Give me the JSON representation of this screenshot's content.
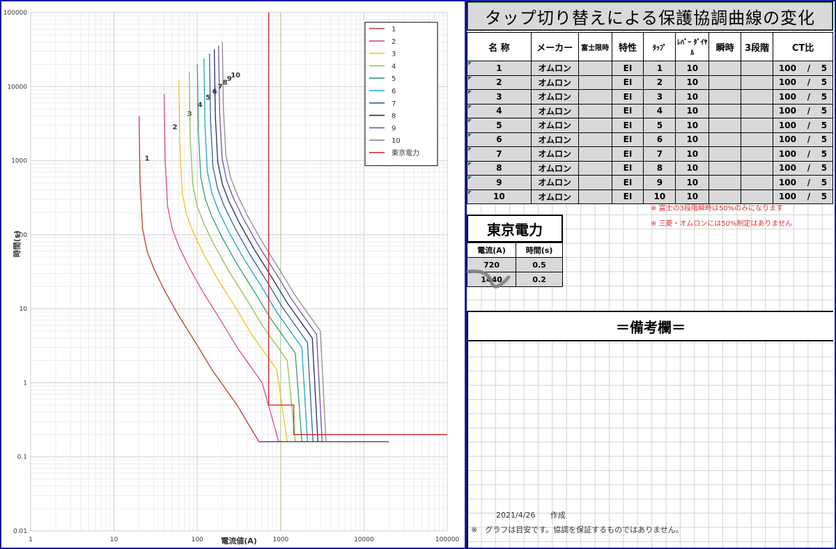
{
  "chart_data": {
    "type": "line",
    "title": "",
    "xlabel": "電流値(A)",
    "ylabel": "時間(s)",
    "xscale": "log",
    "yscale": "log",
    "xlim": [
      1,
      100000
    ],
    "ylim": [
      0.01,
      100000
    ],
    "xticks": [
      "1",
      "10",
      "100",
      "1000",
      "10000",
      "100000"
    ],
    "yticks": [
      "0.01",
      "0.1",
      "1",
      "10",
      "100",
      "1000",
      "10000",
      "100000"
    ],
    "grid": true,
    "legend": "top-right",
    "series": [
      {
        "name": "1",
        "color": "#c0392b",
        "x": [
          20,
          20.6,
          22,
          25,
          30,
          40,
          60,
          100,
          150,
          300,
          550
        ],
        "y": [
          4000,
          500,
          120,
          60,
          35,
          18,
          8,
          3.2,
          1.5,
          0.5,
          0.16
        ],
        "label": "1"
      },
      {
        "name": "2",
        "color": "#e4428f",
        "x": [
          40,
          41.2,
          44,
          50,
          60,
          80,
          120,
          200,
          300,
          600,
          950
        ],
        "y": [
          8000,
          1000,
          240,
          120,
          70,
          36,
          16,
          6.4,
          3,
          1,
          0.16
        ],
        "label": "2"
      },
      {
        "name": "3",
        "color": "#f0c020",
        "x": [
          60,
          61.8,
          66,
          75,
          90,
          120,
          180,
          300,
          450,
          900,
          1200
        ],
        "y": [
          12000,
          1500,
          360,
          180,
          105,
          54,
          24,
          9.6,
          4.5,
          1.5,
          0.16
        ],
        "label": "3"
      },
      {
        "name": "4",
        "color": "#90c050",
        "x": [
          80,
          82.4,
          88,
          100,
          120,
          160,
          240,
          400,
          600,
          1200,
          1500
        ],
        "y": [
          16000,
          2000,
          480,
          240,
          140,
          72,
          32,
          12.8,
          6,
          2,
          0.16
        ],
        "label": "4"
      },
      {
        "name": "5",
        "color": "#2e9e6a",
        "x": [
          100,
          103,
          110,
          125,
          150,
          200,
          300,
          500,
          750,
          1500,
          1800
        ],
        "y": [
          20000,
          2500,
          600,
          300,
          175,
          90,
          40,
          16,
          7.5,
          2.5,
          0.16
        ],
        "label": "5"
      },
      {
        "name": "6",
        "color": "#1aa3d4",
        "x": [
          120,
          123.6,
          132,
          150,
          180,
          240,
          360,
          600,
          900,
          1800,
          2100
        ],
        "y": [
          24000,
          3000,
          720,
          360,
          210,
          108,
          48,
          19.2,
          9,
          3,
          0.16
        ],
        "label": "6"
      },
      {
        "name": "7",
        "color": "#2d60a8",
        "x": [
          140,
          144.2,
          154,
          175,
          210,
          280,
          420,
          700,
          1050,
          2100,
          2450
        ],
        "y": [
          28000,
          3500,
          840,
          420,
          245,
          126,
          56,
          22.4,
          10.5,
          3.5,
          0.16
        ],
        "label": "7"
      },
      {
        "name": "8",
        "color": "#1c2f5a",
        "x": [
          160,
          164.8,
          176,
          200,
          240,
          320,
          480,
          800,
          1200,
          2400,
          2800
        ],
        "y": [
          32000,
          4000,
          960,
          480,
          280,
          144,
          64,
          25.6,
          12,
          4,
          0.16
        ],
        "label": "8"
      },
      {
        "name": "9",
        "color": "#7a4ea0",
        "x": [
          180,
          185.4,
          198,
          225,
          270,
          360,
          540,
          900,
          1350,
          2700,
          3150
        ],
        "y": [
          36000,
          4500,
          1080,
          540,
          315,
          162,
          72,
          28.8,
          13.5,
          4.5,
          0.16
        ],
        "label": "9"
      },
      {
        "name": "10",
        "color": "#8c8c8c",
        "x": [
          200,
          206,
          220,
          250,
          300,
          400,
          600,
          1000,
          1500,
          3000,
          3500
        ],
        "y": [
          40000,
          5000,
          1200,
          600,
          350,
          180,
          80,
          32,
          15,
          5,
          0.16
        ],
        "label": "10"
      },
      {
        "name": "東京電力",
        "color": "#d02020",
        "x": [
          720,
          720,
          1440,
          1440,
          100000
        ],
        "y": [
          100000,
          0.5,
          0.5,
          0.2,
          0.2
        ]
      }
    ],
    "flat_segment": {
      "x": [
        550,
        20000
      ],
      "y": [
        0.16,
        0.16
      ],
      "color": "#000000"
    },
    "extra_line": {
      "x": [
        1000,
        1000
      ],
      "y": [
        0.01,
        100000
      ],
      "color": "#a8d08d"
    }
  },
  "sheet": {
    "title": "タップ切り替えによる保護協調曲線の変化",
    "headers": [
      "名 称",
      "メーカー",
      "富士限時",
      "特性",
      "ﾀｯﾌﾟ",
      "ﾚﾊﾞｰ ﾀﾞｲﾔﾙ",
      "瞬時",
      "3段階",
      "CT比"
    ],
    "rows": [
      {
        "name": "1",
        "maker": "オムロン",
        "char": "EI",
        "tap": "1",
        "lever": "10",
        "ct1": "100",
        "slash": "/",
        "ct2": "5"
      },
      {
        "name": "2",
        "maker": "オムロン",
        "char": "EI",
        "tap": "2",
        "lever": "10",
        "ct1": "100",
        "slash": "/",
        "ct2": "5"
      },
      {
        "name": "3",
        "maker": "オムロン",
        "char": "EI",
        "tap": "3",
        "lever": "10",
        "ct1": "100",
        "slash": "/",
        "ct2": "5"
      },
      {
        "name": "4",
        "maker": "オムロン",
        "char": "EI",
        "tap": "4",
        "lever": "10",
        "ct1": "100",
        "slash": "/",
        "ct2": "5"
      },
      {
        "name": "5",
        "maker": "オムロン",
        "char": "EI",
        "tap": "5",
        "lever": "10",
        "ct1": "100",
        "slash": "/",
        "ct2": "5"
      },
      {
        "name": "6",
        "maker": "オムロン",
        "char": "EI",
        "tap": "6",
        "lever": "10",
        "ct1": "100",
        "slash": "/",
        "ct2": "5"
      },
      {
        "name": "7",
        "maker": "オムロン",
        "char": "EI",
        "tap": "7",
        "lever": "10",
        "ct1": "100",
        "slash": "/",
        "ct2": "5"
      },
      {
        "name": "8",
        "maker": "オムロン",
        "char": "EI",
        "tap": "8",
        "lever": "10",
        "ct1": "100",
        "slash": "/",
        "ct2": "5"
      },
      {
        "name": "9",
        "maker": "オムロン",
        "char": "EI",
        "tap": "9",
        "lever": "10",
        "ct1": "100",
        "slash": "/",
        "ct2": "5"
      },
      {
        "name": "10",
        "maker": "オムロン",
        "char": "EI",
        "tap": "10",
        "lever": "10",
        "ct1": "100",
        "slash": "/",
        "ct2": "5"
      }
    ],
    "note1": "※ 富士の3段階瞬時は50%のみになります",
    "note2": "※ 三菱・オムロンには50%制定はありません",
    "tepco": {
      "title": "東京電力",
      "head_current": "電流(A)",
      "head_time": "時間(s)",
      "rows": [
        {
          "current": "720",
          "time": "0.5"
        },
        {
          "current": "1440",
          "time": "0.2"
        }
      ]
    },
    "remarks_title": "＝備考欄＝",
    "created_date": "2021/4/26",
    "created_label": "作成",
    "disclaimer": "※　グラフは目安です。協調を保証するものではありません。"
  }
}
